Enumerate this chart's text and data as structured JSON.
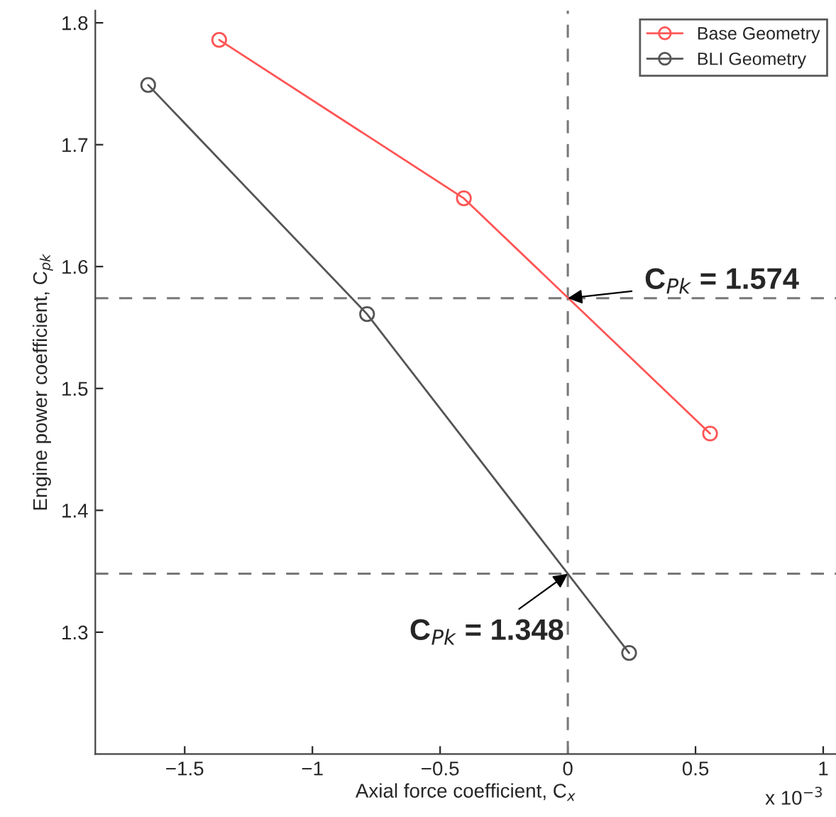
{
  "chart_data": {
    "type": "line",
    "xlabel": "Axial force coefficient, C$_{x}$",
    "ylabel": "Engine power coefficient, C$_{pk}$",
    "series": [
      {
        "name": "Base Geometry",
        "color": "#ff5555",
        "x": [
          -1.365,
          -0.407,
          0.557
        ],
        "values": [
          1.786,
          1.656,
          1.463
        ]
      },
      {
        "name": "BLI Geometry",
        "color": "#555555",
        "x": [
          -1.643,
          -0.786,
          0.24
        ],
        "values": [
          1.749,
          1.561,
          1.283
        ]
      }
    ],
    "xlim": [
      -1.85,
      1.05
    ],
    "ylim": [
      1.2,
      1.81
    ],
    "xticks": [
      {
        "value": -1.5,
        "label": "−1.5"
      },
      {
        "value": -1,
        "label": "−1"
      },
      {
        "value": -0.5,
        "label": "−0.5"
      },
      0,
      0.5,
      1
    ],
    "yticks": [
      1.3,
      1.4,
      1.5,
      1.6,
      1.7,
      1.8
    ],
    "ref_lines": [
      {
        "axis": "x",
        "value": 0,
        "color": "#777777",
        "line_style": "dashed"
      },
      {
        "axis": "y",
        "value": 1.574,
        "color": "#777777",
        "line_style": "dashed"
      },
      {
        "axis": "y",
        "value": 1.348,
        "color": "#777777",
        "line_style": "dashed"
      }
    ],
    "annotations": [
      {
        "text": "C$_{Pk}$ = 1.574",
        "x": 0,
        "y": 1.574
      },
      {
        "text": "C$_{Pk}$ = 1.348",
        "x": 0,
        "y": 1.348
      },
      "x 10$^{−3}$"
    ],
    "marker": "circle",
    "line_style": "solid",
    "grid": false,
    "legend": "top right"
  }
}
